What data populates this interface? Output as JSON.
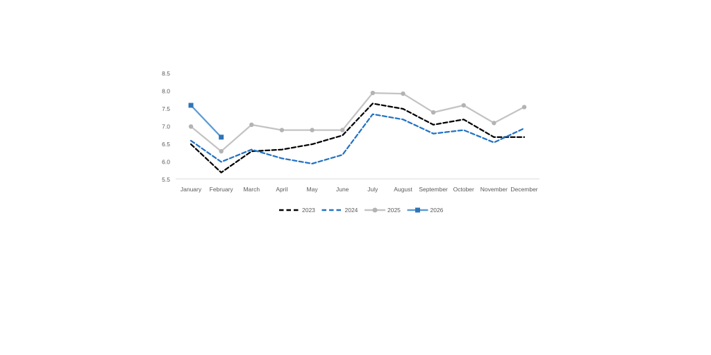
{
  "chart_data": {
    "type": "line",
    "title": "",
    "xlabel": "",
    "ylabel": "",
    "categories": [
      "January",
      "February",
      "March",
      "April",
      "May",
      "June",
      "July",
      "August",
      "September",
      "October",
      "November",
      "December"
    ],
    "series": [
      {
        "name": "2023",
        "values": [
          6.5,
          5.7,
          6.3,
          6.35,
          6.5,
          6.75,
          7.65,
          7.5,
          7.05,
          7.2,
          6.7,
          6.7
        ],
        "color": "#000000",
        "dash": true,
        "marker": "none"
      },
      {
        "name": "2024",
        "values": [
          6.6,
          6.0,
          6.35,
          6.1,
          5.95,
          6.2,
          7.35,
          7.2,
          6.8,
          6.9,
          6.55,
          6.95
        ],
        "color": "#2272C3",
        "dash": true,
        "marker": "none"
      },
      {
        "name": "2025",
        "values": [
          7.0,
          6.3,
          7.05,
          6.9,
          6.9,
          6.9,
          7.95,
          7.93,
          7.4,
          7.6,
          7.1,
          7.55
        ],
        "color": "#C3C3C3",
        "dash": false,
        "marker": "circle",
        "marker_color": "#B3B3B3"
      },
      {
        "name": "2026",
        "values": [
          7.6,
          6.7,
          null,
          null,
          null,
          null,
          null,
          null,
          null,
          null,
          null,
          null
        ],
        "color": "#5B9BD5",
        "dash": false,
        "marker": "square",
        "marker_color": "#2E75B6"
      }
    ],
    "ylim": [
      5.5,
      8.5
    ],
    "ytick_step": 0.5,
    "ytick_labels": [
      "5.5",
      "6.0",
      "6.5",
      "7.0",
      "7.5",
      "8.0",
      "8.5"
    ],
    "grid": false,
    "legend_position": "bottom",
    "legend_entries": [
      "2023",
      "2024",
      "2025",
      "2026"
    ],
    "axis_color": "#D9D9D9",
    "label_color": "#595959",
    "background_color": "#FFFFFF"
  }
}
